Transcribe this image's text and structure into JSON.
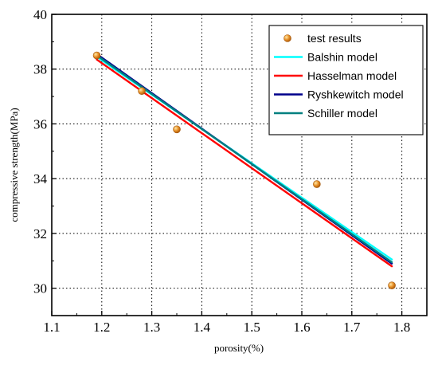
{
  "chart_data": {
    "type": "scatter",
    "xlabel": "porosity(%)",
    "ylabel": "compressive strength(MPa)",
    "xlim": [
      1.1,
      1.85
    ],
    "ylim": [
      29,
      40
    ],
    "x_ticks": [
      "1.1",
      "1.2",
      "1.3",
      "1.4",
      "1.5",
      "1.6",
      "1.7",
      "1.8"
    ],
    "y_ticks": [
      "30",
      "32",
      "34",
      "36",
      "38",
      "40"
    ],
    "grid": true,
    "legend_position": "top-right",
    "scatter": {
      "name": "test results",
      "color": "#e8922a",
      "points": [
        {
          "x": 1.19,
          "y": 38.5
        },
        {
          "x": 1.28,
          "y": 37.2
        },
        {
          "x": 1.35,
          "y": 35.8
        },
        {
          "x": 1.63,
          "y": 33.8
        },
        {
          "x": 1.78,
          "y": 30.1
        }
      ]
    },
    "series": [
      {
        "name": "Balshin model",
        "color": "#00ffff",
        "x": [
          1.19,
          1.78
        ],
        "y": [
          38.45,
          31.05
        ]
      },
      {
        "name": "Hasselman model",
        "color": "#ff0000",
        "x": [
          1.19,
          1.78
        ],
        "y": [
          38.35,
          30.8
        ]
      },
      {
        "name": "Ryshkewitch model",
        "color": "#00008b",
        "x": [
          1.19,
          1.78
        ],
        "y": [
          38.55,
          30.9
        ]
      },
      {
        "name": "Schiller model",
        "color": "#008080",
        "x": [
          1.19,
          1.78
        ],
        "y": [
          38.5,
          30.95
        ]
      }
    ]
  }
}
